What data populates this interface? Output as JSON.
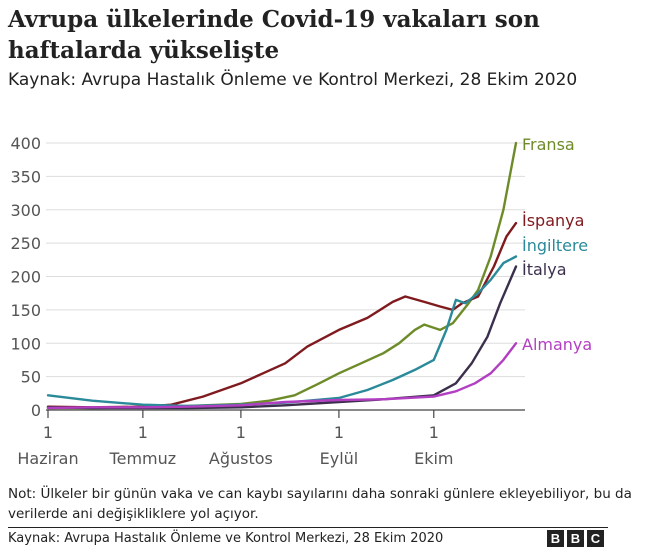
{
  "header": {
    "title": "Avrupa ülkelerinde Covid-19 vakaları son haftalarda yükselişte",
    "subtitle": "Kaynak: Avrupa Hastalık Önleme ve Kontrol Merkezi, 28 Ekim 2020"
  },
  "footer": {
    "note": "Not: Ülkeler bir günün vaka ve can kaybı sayılarını daha sonraki günlere ekleyebiliyor, bu da verilerde ani değişikliklere yol açıyor.",
    "source": "Kaynak: Avrupa Hastalık Önleme ve Kontrol Merkezi, 28 Ekim 2020",
    "logo_letters": [
      "B",
      "B",
      "C"
    ]
  },
  "chart_data": {
    "type": "line",
    "x_unit": "date (2020)",
    "xlim": [
      "2020-06-01",
      "2020-10-27"
    ],
    "ylim": [
      0,
      400
    ],
    "yticks": [
      0,
      50,
      100,
      150,
      200,
      250,
      300,
      350,
      400
    ],
    "xticks": [
      {
        "date": "2020-06-01",
        "day": "1",
        "month": "Haziran"
      },
      {
        "date": "2020-07-01",
        "day": "1",
        "month": "Temmuz"
      },
      {
        "date": "2020-08-01",
        "day": "1",
        "month": "Ağustos"
      },
      {
        "date": "2020-09-01",
        "day": "1",
        "month": "Eylül"
      },
      {
        "date": "2020-10-01",
        "day": "1",
        "month": "Ekim"
      }
    ],
    "grid": true,
    "series": [
      {
        "name": "Fransa",
        "color": "#6e8b2a",
        "points": [
          [
            "2020-06-01",
            3
          ],
          [
            "2020-06-15",
            3
          ],
          [
            "2020-07-01",
            4
          ],
          [
            "2020-07-15",
            6
          ],
          [
            "2020-08-01",
            9
          ],
          [
            "2020-08-10",
            14
          ],
          [
            "2020-08-18",
            22
          ],
          [
            "2020-08-25",
            38
          ],
          [
            "2020-09-01",
            55
          ],
          [
            "2020-09-08",
            70
          ],
          [
            "2020-09-15",
            85
          ],
          [
            "2020-09-20",
            100
          ],
          [
            "2020-09-25",
            120
          ],
          [
            "2020-09-28",
            128
          ],
          [
            "2020-10-03",
            120
          ],
          [
            "2020-10-07",
            130
          ],
          [
            "2020-10-12",
            160
          ],
          [
            "2020-10-15",
            180
          ],
          [
            "2020-10-19",
            230
          ],
          [
            "2020-10-23",
            300
          ],
          [
            "2020-10-27",
            400
          ]
        ]
      },
      {
        "name": "İspanya",
        "color": "#7f1a1e",
        "points": [
          [
            "2020-06-01",
            5
          ],
          [
            "2020-06-15",
            4
          ],
          [
            "2020-07-01",
            5
          ],
          [
            "2020-07-10",
            8
          ],
          [
            "2020-07-20",
            20
          ],
          [
            "2020-08-01",
            40
          ],
          [
            "2020-08-08",
            55
          ],
          [
            "2020-08-15",
            70
          ],
          [
            "2020-08-22",
            95
          ],
          [
            "2020-09-01",
            120
          ],
          [
            "2020-09-10",
            138
          ],
          [
            "2020-09-18",
            162
          ],
          [
            "2020-09-22",
            170
          ],
          [
            "2020-09-28",
            162
          ],
          [
            "2020-10-03",
            155
          ],
          [
            "2020-10-07",
            150
          ],
          [
            "2020-10-10",
            160
          ],
          [
            "2020-10-15",
            170
          ],
          [
            "2020-10-20",
            215
          ],
          [
            "2020-10-24",
            260
          ],
          [
            "2020-10-27",
            280
          ]
        ]
      },
      {
        "name": "İngiltere",
        "color": "#2a8a9a",
        "points": [
          [
            "2020-06-01",
            22
          ],
          [
            "2020-06-15",
            14
          ],
          [
            "2020-07-01",
            8
          ],
          [
            "2020-07-15",
            6
          ],
          [
            "2020-08-01",
            8
          ],
          [
            "2020-08-15",
            11
          ],
          [
            "2020-09-01",
            18
          ],
          [
            "2020-09-10",
            30
          ],
          [
            "2020-09-18",
            45
          ],
          [
            "2020-09-25",
            60
          ],
          [
            "2020-10-01",
            75
          ],
          [
            "2020-10-05",
            120
          ],
          [
            "2020-10-08",
            165
          ],
          [
            "2020-10-11",
            160
          ],
          [
            "2020-10-15",
            175
          ],
          [
            "2020-10-19",
            195
          ],
          [
            "2020-10-23",
            220
          ],
          [
            "2020-10-27",
            230
          ]
        ]
      },
      {
        "name": "İtalya",
        "color": "#3c2f4d",
        "points": [
          [
            "2020-06-01",
            4
          ],
          [
            "2020-06-15",
            3
          ],
          [
            "2020-07-01",
            3
          ],
          [
            "2020-07-15",
            3
          ],
          [
            "2020-08-01",
            4
          ],
          [
            "2020-08-15",
            7
          ],
          [
            "2020-09-01",
            12
          ],
          [
            "2020-09-15",
            16
          ],
          [
            "2020-10-01",
            22
          ],
          [
            "2020-10-08",
            40
          ],
          [
            "2020-10-13",
            70
          ],
          [
            "2020-10-18",
            110
          ],
          [
            "2020-10-22",
            160
          ],
          [
            "2020-10-27",
            215
          ]
        ]
      },
      {
        "name": "Almanya",
        "color": "#b23fc2",
        "points": [
          [
            "2020-06-01",
            3
          ],
          [
            "2020-06-15",
            4
          ],
          [
            "2020-07-01",
            4
          ],
          [
            "2020-07-15",
            5
          ],
          [
            "2020-08-01",
            7
          ],
          [
            "2020-08-15",
            12
          ],
          [
            "2020-09-01",
            15
          ],
          [
            "2020-09-15",
            16
          ],
          [
            "2020-10-01",
            20
          ],
          [
            "2020-10-08",
            28
          ],
          [
            "2020-10-14",
            40
          ],
          [
            "2020-10-19",
            55
          ],
          [
            "2020-10-23",
            75
          ],
          [
            "2020-10-27",
            100
          ]
        ]
      }
    ]
  }
}
